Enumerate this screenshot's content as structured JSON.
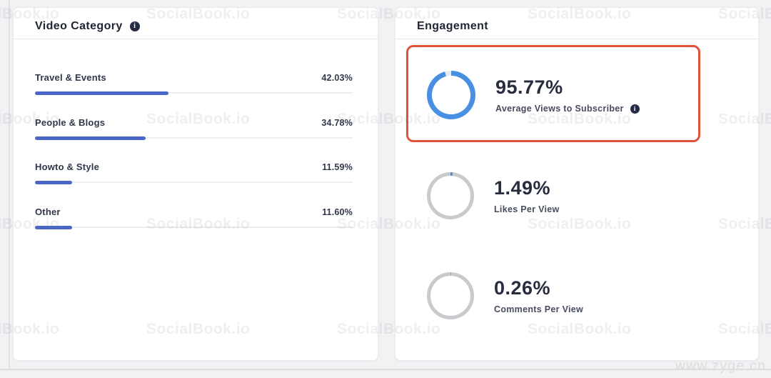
{
  "watermark": {
    "text": "SocialBook.io"
  },
  "url_caption": "www.zyge.cn",
  "colors": {
    "bar_blue": "#4a67c8",
    "ring_blue": "#4a90e2",
    "ring_track_light": "#e7eaef",
    "ring_track_gray": "#c8cacd",
    "highlight_border": "#e0543a",
    "info_icon_bg": "#252a45",
    "title_text": "#1f2433"
  },
  "video_category": {
    "title": "Video Category",
    "info_icon": "i",
    "rows": [
      {
        "label": "Travel & Events",
        "value": "42.03%",
        "pct": 42.03
      },
      {
        "label": "People & Blogs",
        "value": "34.78%",
        "pct": 34.78
      },
      {
        "label": "Howto & Style",
        "value": "11.59%",
        "pct": 11.59
      },
      {
        "label": "Other",
        "value": "11.60%",
        "pct": 11.6
      }
    ]
  },
  "engagement": {
    "title": "Engagement",
    "items": [
      {
        "value": "95.77%",
        "label": "Average Views to Subscriber",
        "pct": 95.77,
        "highlighted": true,
        "has_info": true,
        "info_icon": "i"
      },
      {
        "value": "1.49%",
        "label": "Likes Per View",
        "pct": 1.49,
        "highlighted": false,
        "has_info": false
      },
      {
        "value": "0.26%",
        "label": "Comments Per View",
        "pct": 0.26,
        "highlighted": false,
        "has_info": false
      }
    ]
  },
  "chart_data": [
    {
      "type": "bar",
      "orientation": "horizontal",
      "title": "Video Category",
      "categories": [
        "Travel & Events",
        "People & Blogs",
        "Howto & Style",
        "Other"
      ],
      "values": [
        42.03,
        34.78,
        11.59,
        11.6
      ],
      "unit": "%",
      "xlim": [
        0,
        100
      ],
      "grid": false,
      "legend": false
    },
    {
      "type": "pie",
      "subtype": "donut-gauge",
      "title": "Engagement",
      "series": [
        {
          "name": "Average Views to Subscriber",
          "value": 95.77
        },
        {
          "name": "Likes Per View",
          "value": 1.49
        },
        {
          "name": "Comments Per View",
          "value": 0.26
        }
      ],
      "unit": "%",
      "legend": false
    }
  ]
}
